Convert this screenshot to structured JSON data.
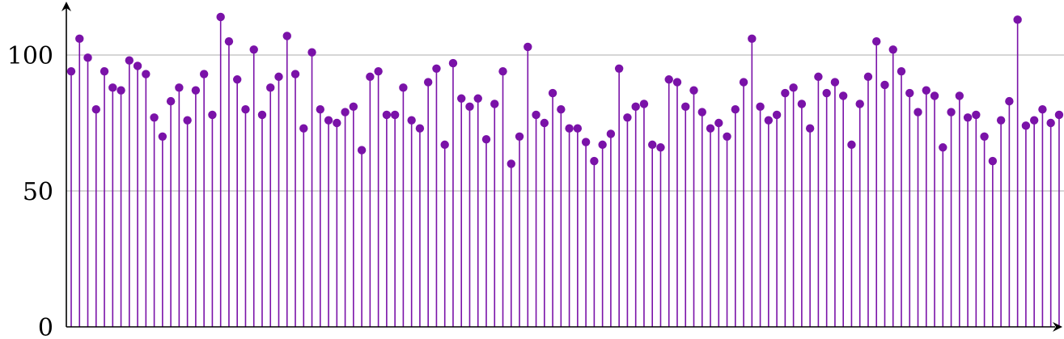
{
  "chart_data": {
    "type": "stem",
    "title": "",
    "xlabel": "",
    "ylabel": "",
    "ylim": [
      0,
      120
    ],
    "yticks": [
      0,
      50,
      100
    ],
    "ytick_labels": [
      "0",
      "50",
      "100"
    ],
    "grid": "horizontal",
    "colors": {
      "series": "#7a12a8",
      "grid": "#bdbdbd",
      "axis": "#000000"
    },
    "values": [
      94,
      106,
      99,
      80,
      94,
      88,
      87,
      98,
      96,
      93,
      77,
      70,
      83,
      88,
      76,
      87,
      93,
      78,
      114,
      105,
      91,
      80,
      102,
      78,
      88,
      92,
      107,
      93,
      73,
      101,
      80,
      76,
      75,
      79,
      81,
      65,
      92,
      94,
      78,
      78,
      88,
      76,
      73,
      90,
      95,
      67,
      97,
      84,
      81,
      84,
      69,
      82,
      94,
      60,
      70,
      103,
      78,
      75,
      86,
      80,
      73,
      73,
      68,
      61,
      67,
      71,
      95,
      77,
      81,
      82,
      67,
      66,
      91,
      90,
      81,
      87,
      79,
      73,
      75,
      70,
      80,
      90,
      106,
      81,
      76,
      78,
      86,
      88,
      82,
      73,
      92,
      86,
      90,
      85,
      67,
      82,
      92,
      105,
      89,
      102,
      94,
      86,
      79,
      87,
      85,
      66,
      79,
      85,
      77,
      78,
      70,
      61,
      76,
      83,
      113,
      74,
      76,
      80,
      75,
      78
    ]
  }
}
